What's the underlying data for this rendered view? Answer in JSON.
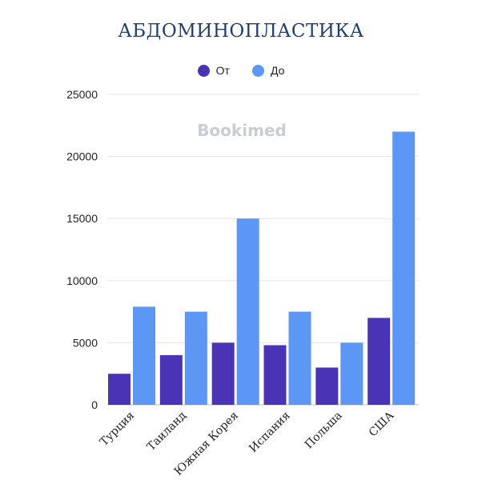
{
  "chart_data": {
    "type": "bar",
    "title": "АБДОМИНОПЛАСТИКА",
    "watermark": "Bookimed",
    "categories": [
      "Турция",
      "Таиланд",
      "Южная Корея",
      "Испания",
      "Польша",
      "США"
    ],
    "series": [
      {
        "name": "От",
        "color": "#4a33b5",
        "values": [
          2500,
          4000,
          5000,
          4800,
          3000,
          7000
        ]
      },
      {
        "name": "До",
        "color": "#5c97f5",
        "values": [
          7900,
          7500,
          15000,
          7500,
          5000,
          22000
        ]
      }
    ],
    "yticks": [
      "0",
      "5000",
      "10000",
      "15000",
      "20000",
      "25000"
    ],
    "ylim": [
      0,
      25000
    ],
    "grid": true,
    "legend_position": "top-center"
  }
}
